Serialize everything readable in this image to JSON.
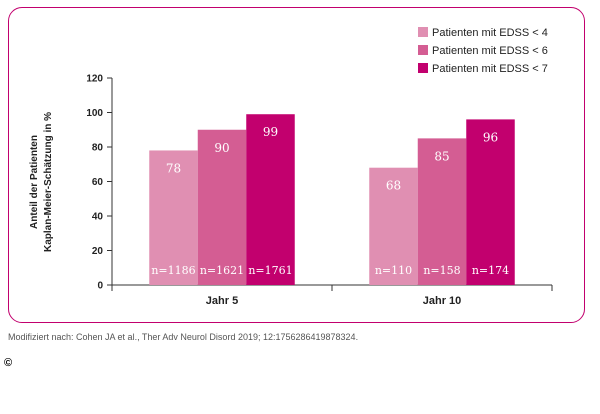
{
  "chart_data": {
    "type": "bar",
    "categories": [
      "Jahr 5",
      "Jahr 10"
    ],
    "series": [
      {
        "name": "Patienten mit EDSS < 4",
        "values": [
          78,
          68
        ],
        "n": [
          "n=1186",
          "n=110"
        ],
        "color": "#e08fb2"
      },
      {
        "name": "Patienten mit EDSS < 6",
        "values": [
          90,
          85
        ],
        "n": [
          "n=1621",
          "n=158"
        ],
        "color": "#d45d93"
      },
      {
        "name": "Patienten mit EDSS < 7",
        "values": [
          99,
          96
        ],
        "n": [
          "n=1761",
          "n=174"
        ],
        "color": "#c2006e"
      }
    ],
    "ylabel_lines": [
      "Anteil der Patienten",
      "Kaplan-Meier-Schätzung in %"
    ],
    "ylim": [
      0,
      120
    ],
    "yticks": [
      0,
      20,
      40,
      60,
      80,
      100,
      120
    ],
    "grid": false,
    "legend_position": "top-right"
  },
  "frame_color": "#c2006e",
  "source": "Modifiziert nach: Cohen JA et al., Ther Adv Neurol Disord 2019; 12:1756286419878324.",
  "copyright": "©"
}
